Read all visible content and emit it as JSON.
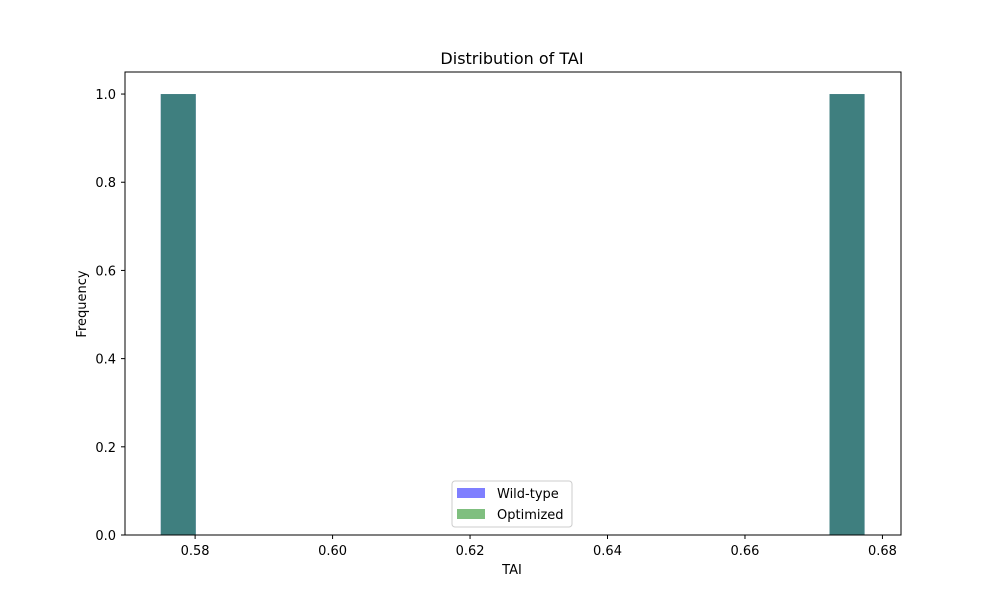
{
  "chart_data": {
    "type": "bar",
    "title": "Distribution of TAI",
    "xlabel": "TAI",
    "ylabel": "Frequency",
    "xlim": [
      0.5698,
      0.6827
    ],
    "ylim": [
      0,
      1.05
    ],
    "x_ticks": [
      0.58,
      0.6,
      0.62,
      0.64,
      0.66,
      0.68
    ],
    "x_tick_labels": [
      "0.58",
      "0.60",
      "0.62",
      "0.64",
      "0.66",
      "0.68"
    ],
    "y_ticks": [
      0.0,
      0.2,
      0.4,
      0.6,
      0.8,
      1.0
    ],
    "y_tick_labels": [
      "0.0",
      "0.2",
      "0.4",
      "0.6",
      "0.8",
      "1.0"
    ],
    "grid": false,
    "legend_position": "bottom-center",
    "series": [
      {
        "name": "Wild-type",
        "color": "#0000ff",
        "opacity": 0.5,
        "bins": [
          {
            "x0": 0.575,
            "x1": 0.5801,
            "value": 1
          },
          {
            "x0": 0.6723,
            "x1": 0.6774,
            "value": 1
          }
        ]
      },
      {
        "name": "Optimized",
        "color": "#008000",
        "opacity": 0.5,
        "bins": [
          {
            "x0": 0.575,
            "x1": 0.5801,
            "value": 1
          },
          {
            "x0": 0.6723,
            "x1": 0.6774,
            "value": 1
          }
        ]
      }
    ]
  }
}
